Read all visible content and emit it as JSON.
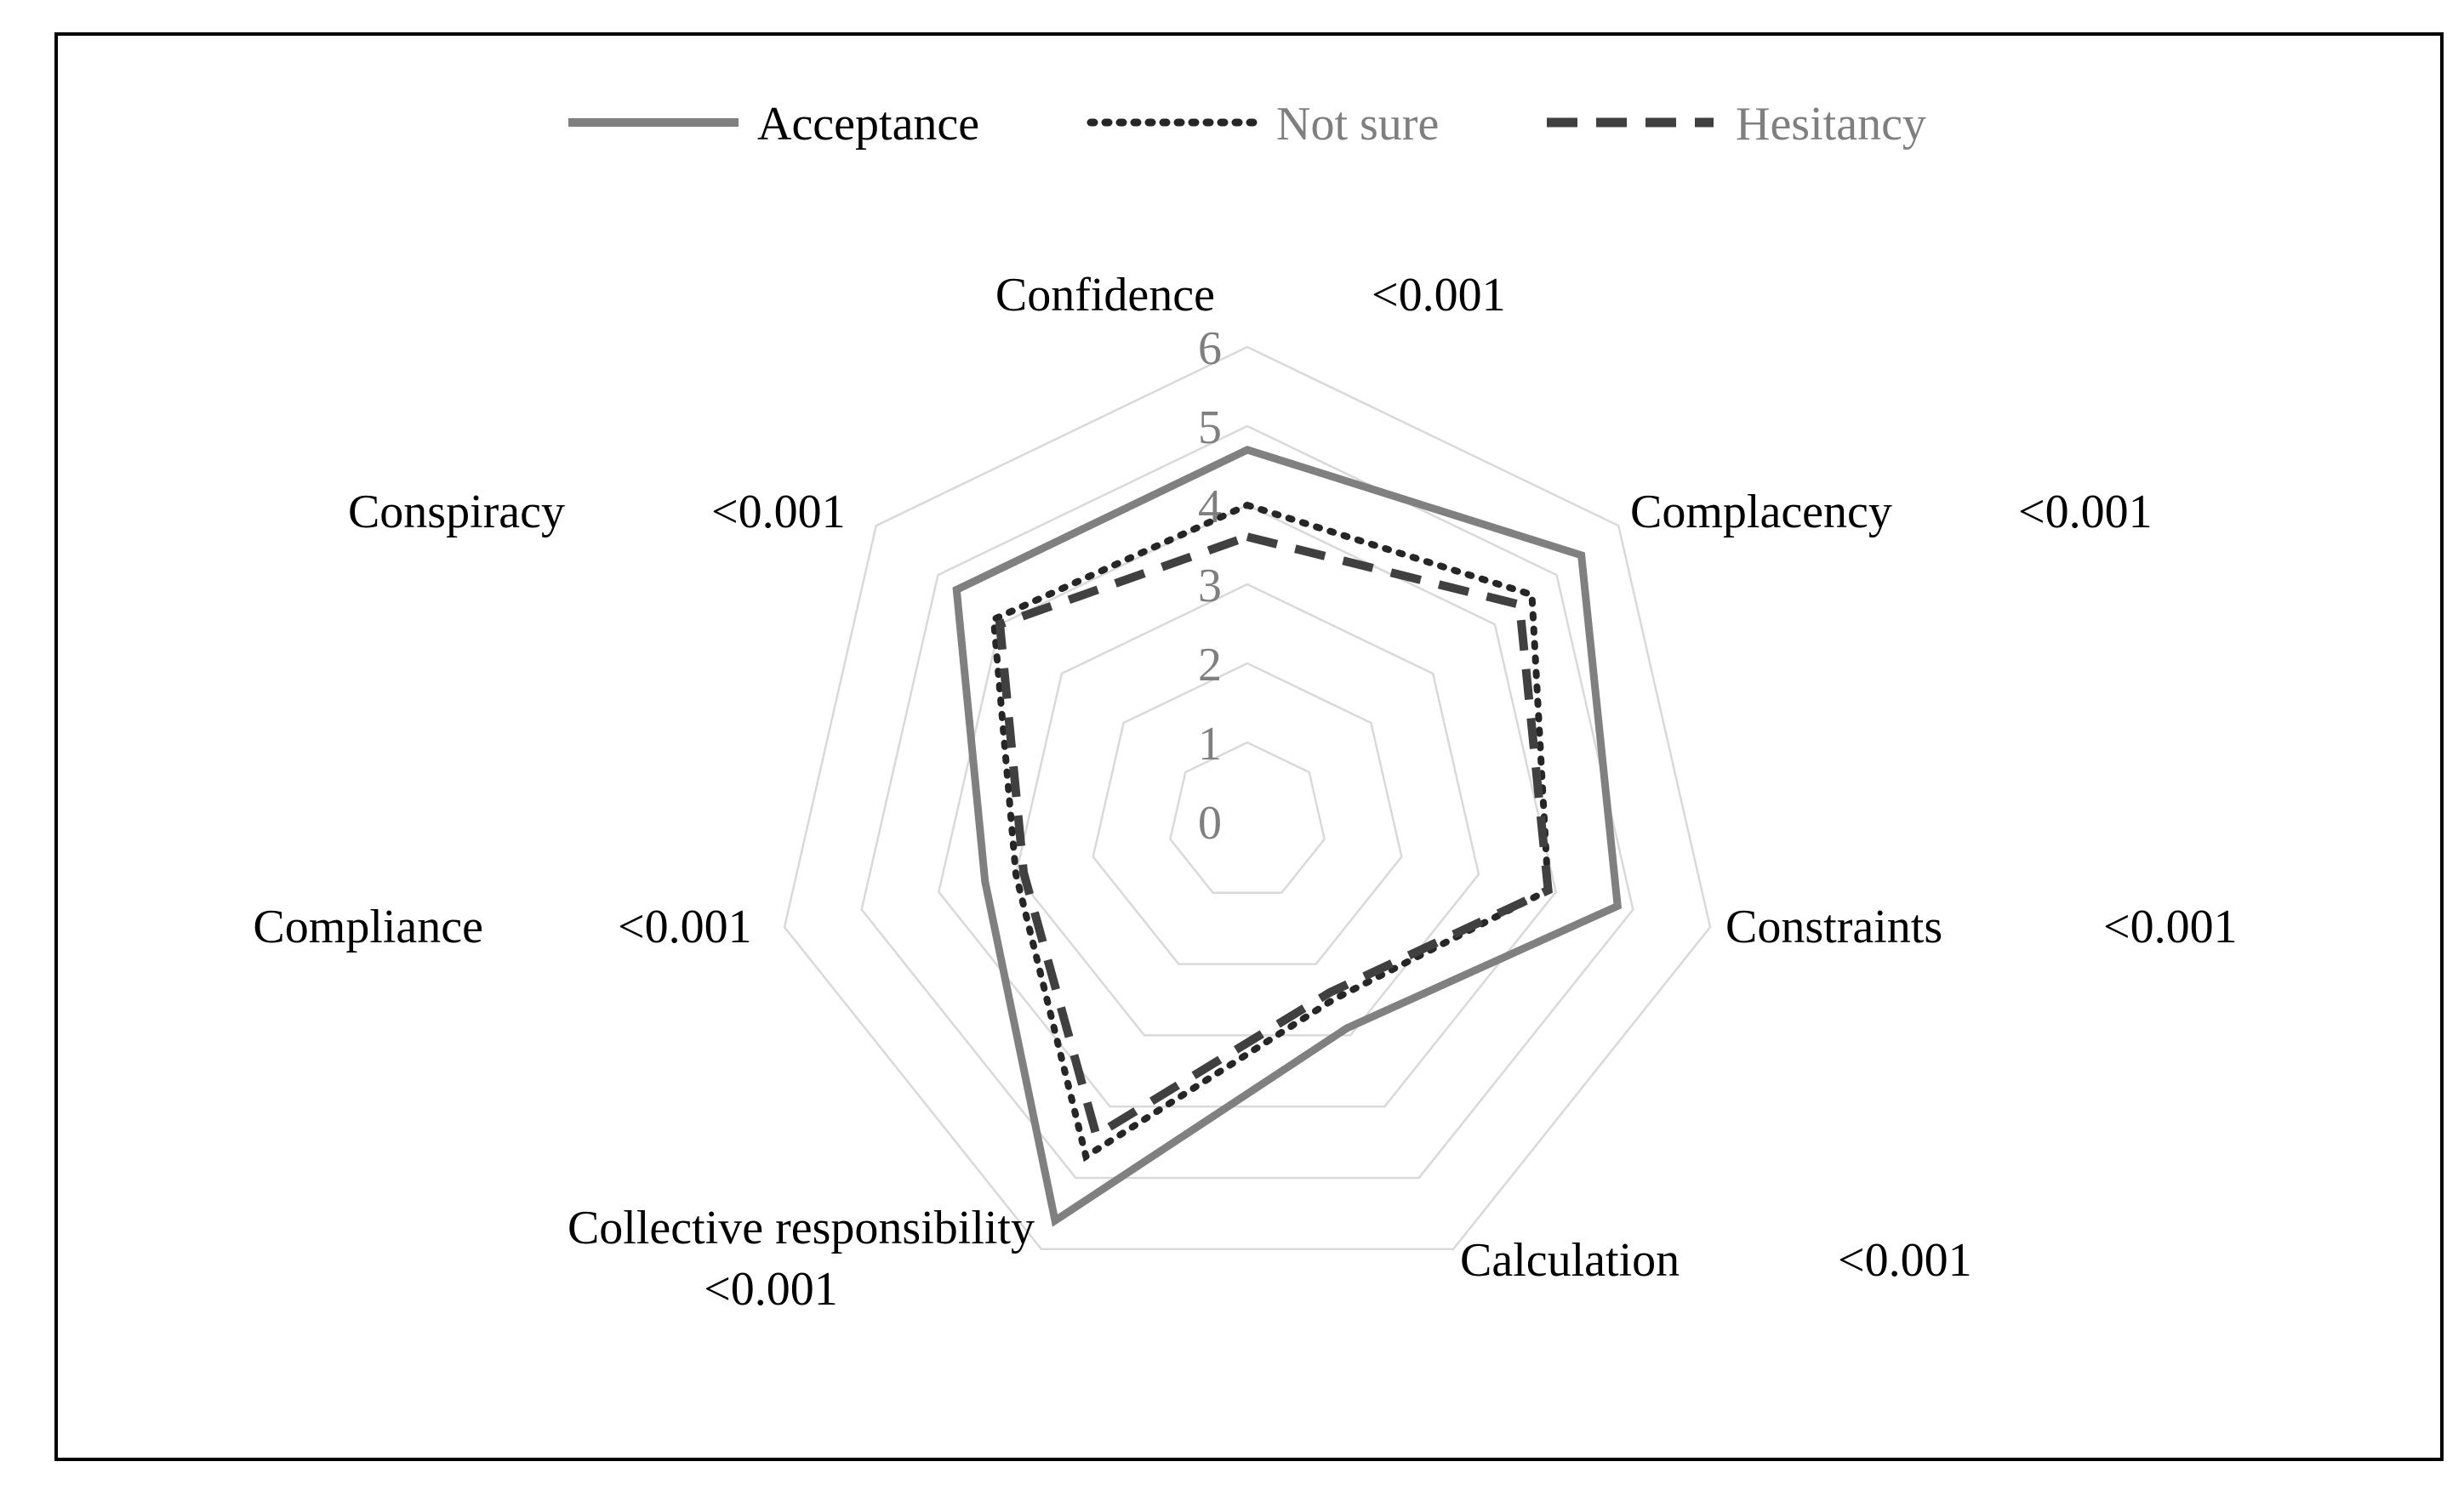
{
  "chart_data": {
    "type": "radar",
    "axes": [
      {
        "label": "Confidence",
        "p_value": "<0.001"
      },
      {
        "label": "Complacency",
        "p_value": "<0.001"
      },
      {
        "label": "Constraints",
        "p_value": "<0.001"
      },
      {
        "label": "Calculation",
        "p_value": "<0.001"
      },
      {
        "label": "Collective responsibility",
        "p_value": "<0.001"
      },
      {
        "label": "Compliance",
        "p_value": "<0.001"
      },
      {
        "label": "Conspiracy",
        "p_value": "<0.001"
      }
    ],
    "rlim": [
      0,
      6
    ],
    "ticks": [
      "0",
      "1",
      "2",
      "3",
      "4",
      "5",
      "6"
    ],
    "grid": true,
    "legend_position": "top",
    "series": [
      {
        "name": "Acceptance",
        "style": "solid",
        "color": "#808080",
        "values": [
          4.7,
          5.4,
          4.8,
          2.9,
          5.6,
          3.4,
          4.7
        ]
      },
      {
        "name": "Not sure",
        "style": "dotted",
        "color": "#262626",
        "values": [
          4.0,
          4.6,
          3.9,
          2.5,
          4.7,
          3.0,
          4.1
        ]
      },
      {
        "name": "Hesitancy",
        "style": "dashed",
        "color": "#404040",
        "values": [
          3.6,
          4.4,
          3.9,
          2.4,
          4.4,
          2.9,
          4.0
        ]
      }
    ]
  }
}
